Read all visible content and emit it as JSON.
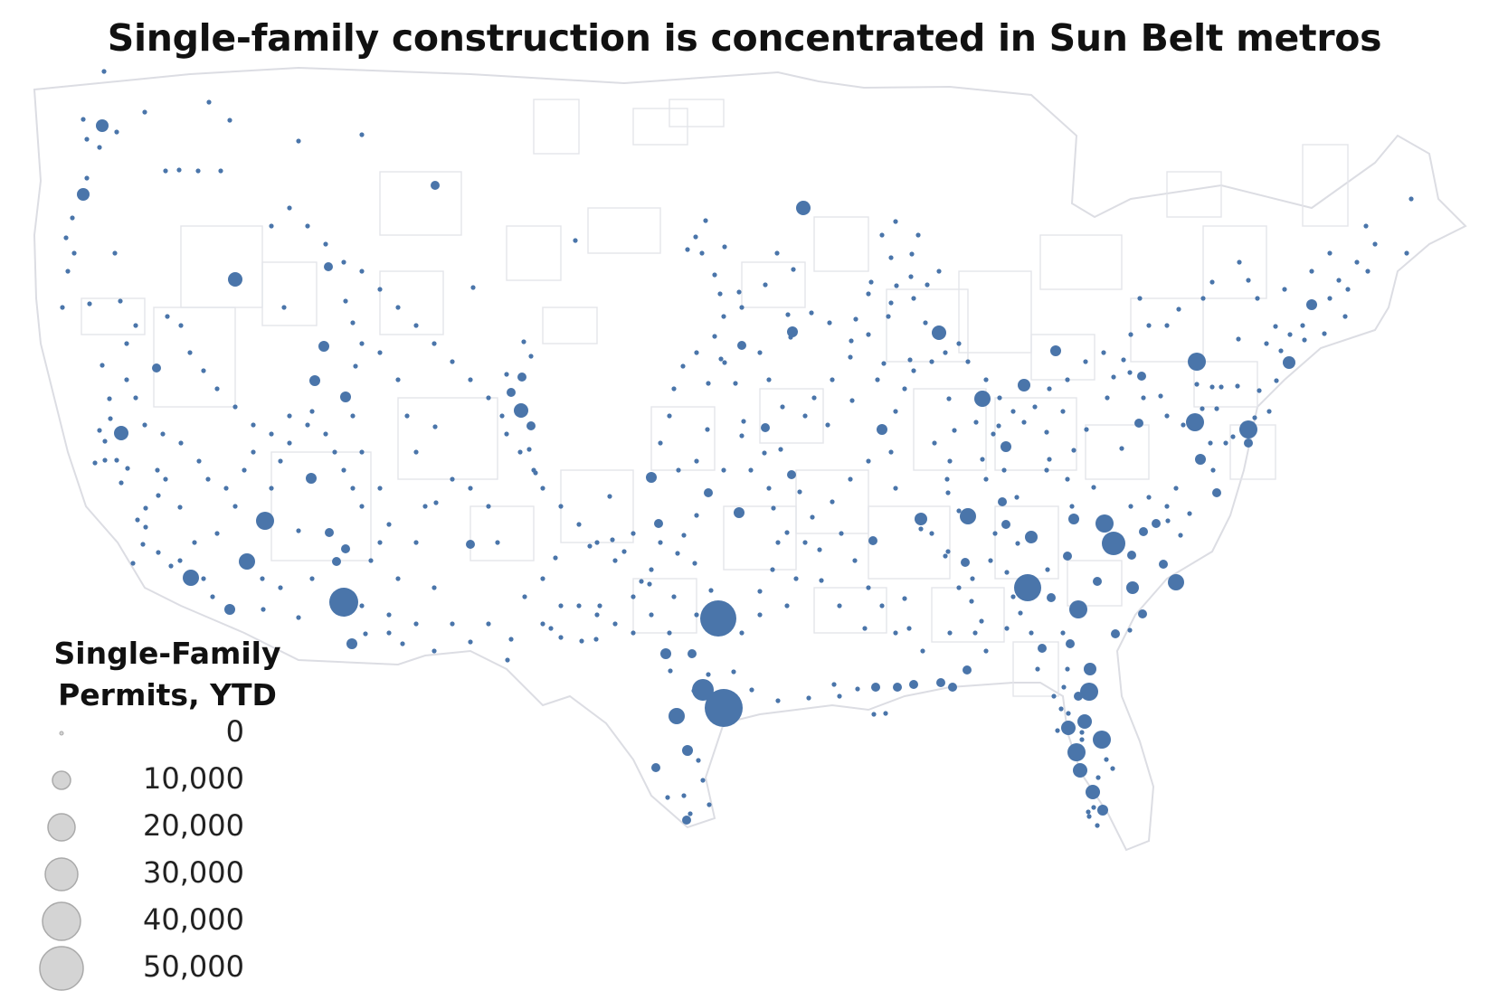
{
  "title": "Single-family construction is concentrated in Sun Belt metros",
  "colors": {
    "bubble": "#4a75aa",
    "legend_bubble": "#d4d4d4",
    "map_lines": "#dcdde3",
    "map_fill": "#ffffff"
  },
  "legend": {
    "title_line1": "Single-Family",
    "title_line2": "Permits, YTD",
    "items": [
      {
        "label": "0",
        "value": 0
      },
      {
        "label": "10,000",
        "value": 10000
      },
      {
        "label": "20,000",
        "value": 20000
      },
      {
        "label": "30,000",
        "value": 30000
      },
      {
        "label": "40,000",
        "value": 40000
      },
      {
        "label": "50,000",
        "value": 50000
      }
    ]
  }
}
